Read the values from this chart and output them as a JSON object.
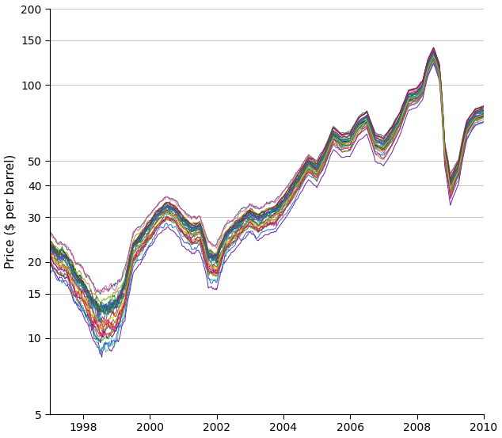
{
  "title": "",
  "ylabel": "Price ($ per barrel)",
  "xlabel": "",
  "xlim": [
    1997.0,
    2010.0
  ],
  "ylim": [
    5,
    200
  ],
  "yticks": [
    5,
    10,
    15,
    20,
    30,
    40,
    50,
    100,
    150,
    200
  ],
  "xticks": [
    1998,
    2000,
    2002,
    2004,
    2006,
    2008,
    2010
  ],
  "figsize": [
    6.34,
    5.53
  ],
  "dpi": 100,
  "colors": [
    "#000000",
    "#0000cc",
    "#006600",
    "#cc0000",
    "#009999",
    "#cc00cc",
    "#999900",
    "#660099",
    "#006666",
    "#ff8800",
    "#993300",
    "#00cc00",
    "#ff4499",
    "#330088",
    "#44bbaa",
    "#990022",
    "#1166cc",
    "#117700",
    "#cc6600",
    "#7700cc",
    "#228855",
    "#887700",
    "#4466cc",
    "#ee4422",
    "#118899",
    "#7722aa",
    "#664422",
    "#446622",
    "#cc1177",
    "#009999",
    "#cccc00"
  ],
  "n_series": 31,
  "seed": 42,
  "anchors_t": [
    1997.0,
    1997.25,
    1997.5,
    1997.75,
    1998.0,
    1998.25,
    1998.5,
    1998.75,
    1999.0,
    1999.25,
    1999.5,
    1999.75,
    2000.0,
    2000.25,
    2000.5,
    2000.75,
    2001.0,
    2001.25,
    2001.5,
    2001.75,
    2002.0,
    2002.25,
    2002.5,
    2002.75,
    2003.0,
    2003.25,
    2003.5,
    2003.75,
    2004.0,
    2004.25,
    2004.5,
    2004.75,
    2005.0,
    2005.25,
    2005.5,
    2005.75,
    2006.0,
    2006.25,
    2006.5,
    2006.75,
    2007.0,
    2007.25,
    2007.5,
    2007.75,
    2008.0,
    2008.17,
    2008.33,
    2008.5,
    2008.67,
    2008.83,
    2009.0,
    2009.25,
    2009.5,
    2009.75,
    2010.0
  ],
  "anchors_p": [
    22.0,
    20.0,
    19.5,
    16.5,
    15.0,
    13.0,
    11.5,
    12.0,
    12.5,
    15.0,
    22.0,
    24.0,
    27.0,
    30.0,
    32.0,
    31.0,
    28.0,
    26.0,
    26.5,
    20.0,
    19.5,
    24.0,
    26.0,
    28.0,
    30.0,
    28.5,
    30.0,
    31.0,
    34.0,
    38.0,
    43.0,
    49.0,
    46.0,
    53.0,
    64.0,
    60.0,
    61.0,
    70.0,
    74.0,
    60.0,
    58.0,
    64.0,
    74.0,
    90.0,
    92.0,
    98.0,
    120.0,
    133.0,
    115.0,
    55.0,
    40.0,
    47.0,
    68.0,
    76.0,
    78.0
  ]
}
